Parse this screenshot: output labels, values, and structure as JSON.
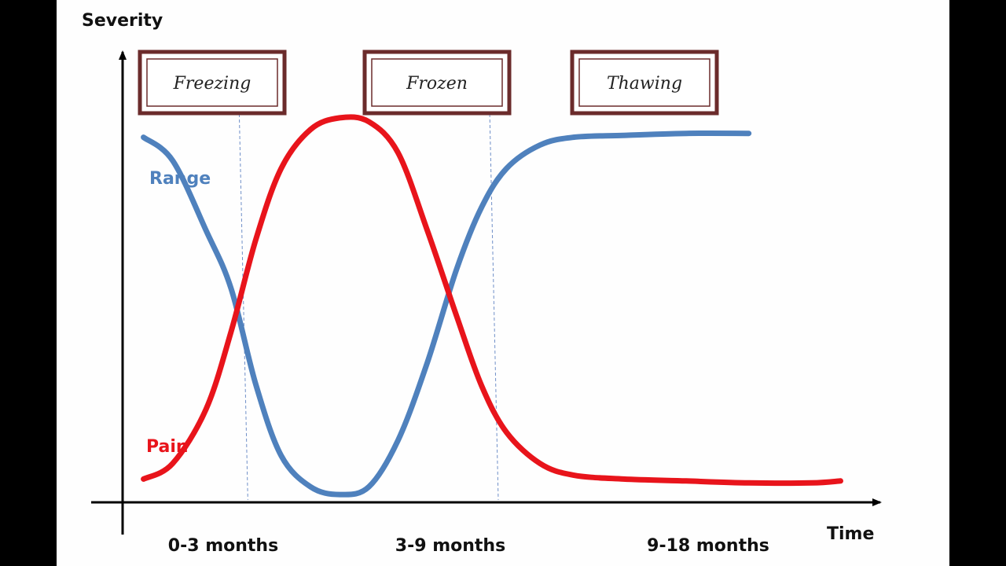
{
  "chart_data": {
    "type": "line",
    "ylabel": "Severity",
    "xlabel": "Time",
    "xlim": [
      0,
      18
    ],
    "ylim": [
      0,
      100
    ],
    "grid": false,
    "phases": [
      {
        "name": "Freezing",
        "period": "0-3 months",
        "x_center": 1.5
      },
      {
        "name": "Frozen",
        "period": "3-9 months",
        "x_center": 5.5
      },
      {
        "name": "Thawing",
        "period": "9-18 months",
        "x_center": 13.5
      }
    ],
    "boundaries": [
      3,
      9
    ],
    "series": [
      {
        "name": "Range",
        "color": "#4f81bd",
        "x": [
          0.5,
          1.2,
          2.0,
          2.6,
          3.2,
          3.8,
          4.5,
          5.2,
          5.9,
          6.6,
          7.3,
          8.0,
          8.6,
          9.2,
          10.0,
          10.8,
          12.0,
          13.5,
          15.0
        ],
        "y": [
          94,
          88,
          70,
          55,
          30,
          12,
          4,
          2,
          4,
          16,
          36,
          60,
          76,
          86,
          92,
          94,
          94.5,
          95,
          95
        ]
      },
      {
        "name": "Pain",
        "color": "#e8141b",
        "x": [
          0.5,
          1.2,
          2.0,
          2.6,
          3.2,
          3.8,
          4.5,
          5.2,
          5.9,
          6.6,
          7.3,
          8.0,
          8.6,
          9.2,
          10.0,
          10.8,
          12.0,
          13.5,
          15.0,
          16.5,
          17.2
        ],
        "y": [
          6,
          10,
          24,
          44,
          68,
          86,
          96,
          99,
          98,
          90,
          70,
          48,
          30,
          18,
          10,
          7,
          6,
          5.5,
          5,
          5,
          5.5
        ]
      }
    ]
  }
}
